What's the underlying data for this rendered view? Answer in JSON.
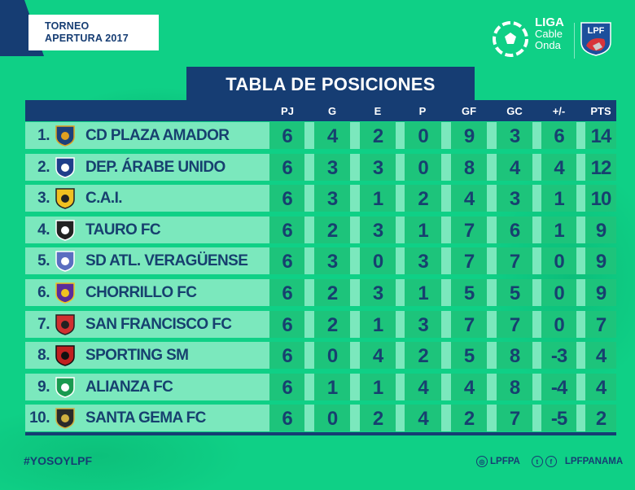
{
  "header": {
    "tournament_line1": "TORNEO",
    "tournament_line2": "APERTURA 2017",
    "league_logo": {
      "line1": "LIGA",
      "line2": "Cable",
      "line3": "Onda"
    },
    "lpf_badge": "LPF"
  },
  "title": "TABLA DE POSICIONES",
  "columns": [
    "PJ",
    "G",
    "E",
    "P",
    "GF",
    "GC",
    "+/-",
    "PTS"
  ],
  "rows": [
    {
      "pos": "1.",
      "team": "CD PLAZA AMADOR",
      "crest": "plaza-amador-crest",
      "vals": [
        "6",
        "4",
        "2",
        "0",
        "9",
        "3",
        "6",
        "14"
      ]
    },
    {
      "pos": "2.",
      "team": "DEP. ÁRABE UNIDO",
      "crest": "arabe-unido-crest",
      "vals": [
        "6",
        "3",
        "3",
        "0",
        "8",
        "4",
        "4",
        "12"
      ]
    },
    {
      "pos": "3.",
      "team": "C.A.I.",
      "crest": "cai-crest",
      "vals": [
        "6",
        "3",
        "1",
        "2",
        "4",
        "3",
        "1",
        "10"
      ]
    },
    {
      "pos": "4.",
      "team": "TAURO FC",
      "crest": "tauro-crest",
      "vals": [
        "6",
        "2",
        "3",
        "1",
        "7",
        "6",
        "1",
        "9"
      ]
    },
    {
      "pos": "5.",
      "team": "SD ATL. VERAGÜENSE",
      "crest": "veraguense-crest",
      "vals": [
        "6",
        "3",
        "0",
        "3",
        "7",
        "7",
        "0",
        "9"
      ]
    },
    {
      "pos": "6.",
      "team": "CHORRILLO FC",
      "crest": "chorrillo-crest",
      "vals": [
        "6",
        "2",
        "3",
        "1",
        "5",
        "5",
        "0",
        "9"
      ]
    },
    {
      "pos": "7.",
      "team": "SAN FRANCISCO FC",
      "crest": "san-francisco-crest",
      "vals": [
        "6",
        "2",
        "1",
        "3",
        "7",
        "7",
        "0",
        "7"
      ]
    },
    {
      "pos": "8.",
      "team": "SPORTING SM",
      "crest": "sporting-sm-crest",
      "vals": [
        "6",
        "0",
        "4",
        "2",
        "5",
        "8",
        "-3",
        "4"
      ]
    },
    {
      "pos": "9.",
      "team": "ALIANZA FC",
      "crest": "alianza-crest",
      "vals": [
        "6",
        "1",
        "1",
        "4",
        "4",
        "8",
        "-4",
        "4"
      ]
    },
    {
      "pos": "10.",
      "team": "SANTA GEMA FC",
      "crest": "santa-gema-crest",
      "vals": [
        "6",
        "0",
        "2",
        "4",
        "2",
        "7",
        "-5",
        "2"
      ]
    }
  ],
  "footer": {
    "hashtag": "#YOSOYLPF",
    "instagram_handle": "LPFPA",
    "twitter_facebook_handle": "LPFPANAMA"
  },
  "colors": {
    "background_green": "#0fd086",
    "navy": "#163d73",
    "light_cell": "#7be8bd",
    "dark_cell": "#1dc47b",
    "text_navy": "#17406f"
  }
}
